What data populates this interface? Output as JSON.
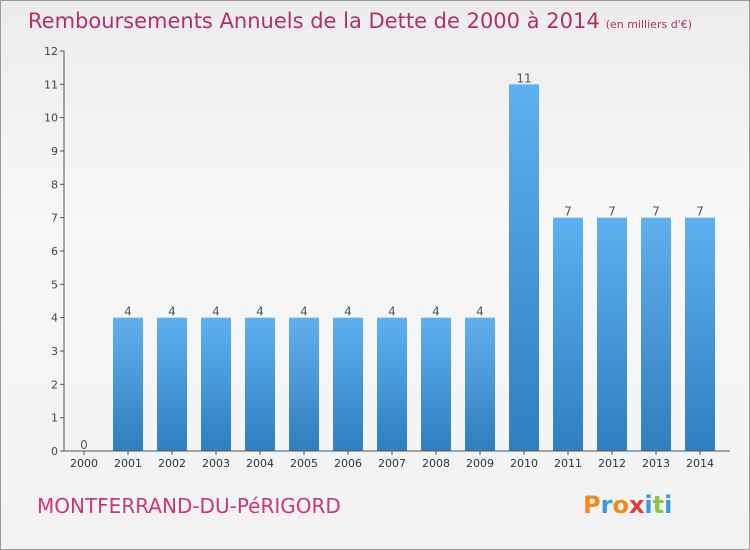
{
  "header": {
    "title": "Remboursements Annuels de la Dette de 2000 à 2014",
    "unit": "(en milliers d'€)"
  },
  "footer": {
    "commune": "MONTFERRAND-DU-PéRIGORD",
    "logo": "Proxiti",
    "logo_colors": [
      "#f08a1c",
      "#3a9ad9",
      "#f08a1c",
      "#e23b3b",
      "#3a9ad9",
      "#8dc63f",
      "#3a9ad9"
    ]
  },
  "chart_data": {
    "type": "bar",
    "title": "Remboursements Annuels de la Dette de 2000 à 2014",
    "xlabel": "",
    "ylabel": "",
    "ylim": [
      0,
      12
    ],
    "yticks": [
      0,
      1,
      2,
      3,
      4,
      5,
      6,
      7,
      8,
      9,
      10,
      11,
      12
    ],
    "grid": false,
    "categories": [
      "2000",
      "2001",
      "2002",
      "2003",
      "2004",
      "2005",
      "2006",
      "2007",
      "2008",
      "2009",
      "2010",
      "2011",
      "2012",
      "2013",
      "2014"
    ],
    "values": [
      0,
      4,
      4,
      4,
      4,
      4,
      4,
      4,
      4,
      4,
      11,
      7,
      7,
      7,
      7
    ],
    "bar_color": "#4a9de0",
    "axis_color": "#555555"
  }
}
